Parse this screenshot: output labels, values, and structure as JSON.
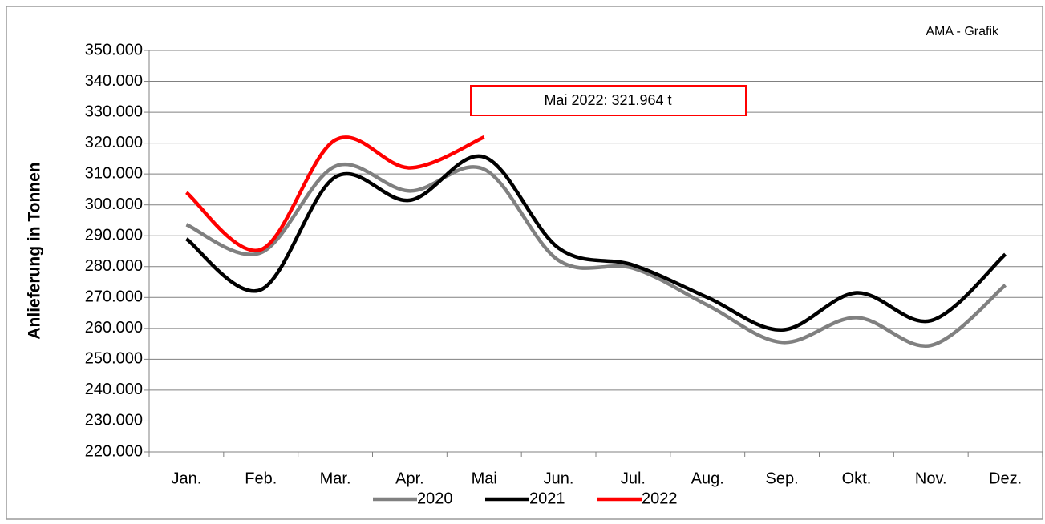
{
  "chart_data": {
    "type": "line",
    "y_label": "Anlieferung in Tonnen",
    "annotation": "Mai 2022: 321.964 t",
    "source": "AMA - Grafik",
    "categories": [
      "Jan.",
      "Feb.",
      "Mar.",
      "Apr.",
      "Mai",
      "Jun.",
      "Jul.",
      "Aug.",
      "Sep.",
      "Okt.",
      "Nov.",
      "Dez."
    ],
    "series": [
      {
        "name": "2020",
        "color": "#808080",
        "values": [
          293600,
          284500,
          312500,
          304500,
          311500,
          282000,
          279500,
          267500,
          255500,
          263500,
          254500,
          274000
        ]
      },
      {
        "name": "2021",
        "color": "#000000",
        "values": [
          289000,
          272500,
          309000,
          301500,
          315500,
          286000,
          280500,
          270000,
          259500,
          271500,
          262500,
          284000
        ]
      },
      {
        "name": "2022",
        "color": "#ff0000",
        "values": [
          304000,
          285500,
          321000,
          312000,
          321964,
          null,
          null,
          null,
          null,
          null,
          null,
          null
        ]
      }
    ],
    "ylim": [
      220000,
      350000
    ],
    "yticks": [
      {
        "value": 220000,
        "label": "220.000"
      },
      {
        "value": 230000,
        "label": "230.000"
      },
      {
        "value": 240000,
        "label": "240.000"
      },
      {
        "value": 250000,
        "label": "250.000"
      },
      {
        "value": 260000,
        "label": "260.000"
      },
      {
        "value": 270000,
        "label": "270.000"
      },
      {
        "value": 280000,
        "label": "280.000"
      },
      {
        "value": 290000,
        "label": "290.000"
      },
      {
        "value": 300000,
        "label": "300.000"
      },
      {
        "value": 310000,
        "label": "310.000"
      },
      {
        "value": 320000,
        "label": "320.000"
      },
      {
        "value": 330000,
        "label": "330.000"
      },
      {
        "value": 340000,
        "label": "340.000"
      },
      {
        "value": 350000,
        "label": "350.000"
      }
    ],
    "grid": true,
    "legend": "bottom"
  }
}
